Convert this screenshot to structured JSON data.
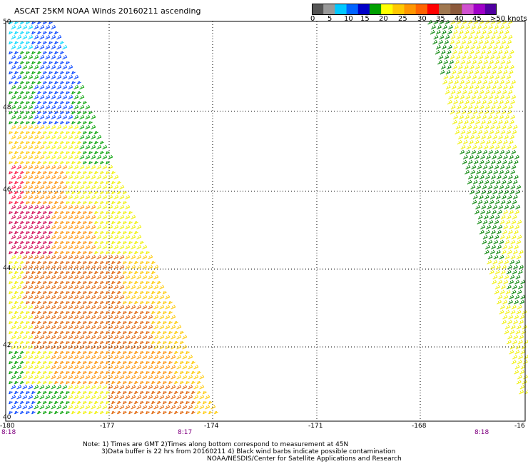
{
  "title": "ASCAT 25KM NOAA Winds 20160211 ascending",
  "legend": {
    "ticks": [
      "0",
      "5",
      "10",
      "15",
      "20",
      "25",
      "30",
      "35",
      "40",
      "45",
      ">50 knots"
    ],
    "colors": [
      "#555555",
      "#999999",
      "#00c8ff",
      "#0064ff",
      "#0000c8",
      "#00a000",
      "#ffff00",
      "#ffc800",
      "#ff9600",
      "#ff6400",
      "#ff0000",
      "#a07850",
      "#8c5a3c",
      "#d050d0",
      "#a000c8",
      "#5000a0"
    ]
  },
  "map": {
    "latitudes": [
      "50",
      "48",
      "46",
      "44",
      "42",
      "40"
    ],
    "longitudes": [
      "-180",
      "-177",
      "-174",
      "-171",
      "-168",
      "-16"
    ],
    "times": [
      "8:18",
      "8:17",
      "8:18"
    ]
  },
  "notes": [
    "Note: 1) Times are GMT 2)Times along bottom correspond to measurement at 45N",
    "3)Data buffer is 22 hrs from 20160211 4) Black wind barbs indicate possible contamination",
    "NOAA/NESDIS/Center for Satellite Applications and Research"
  ]
}
